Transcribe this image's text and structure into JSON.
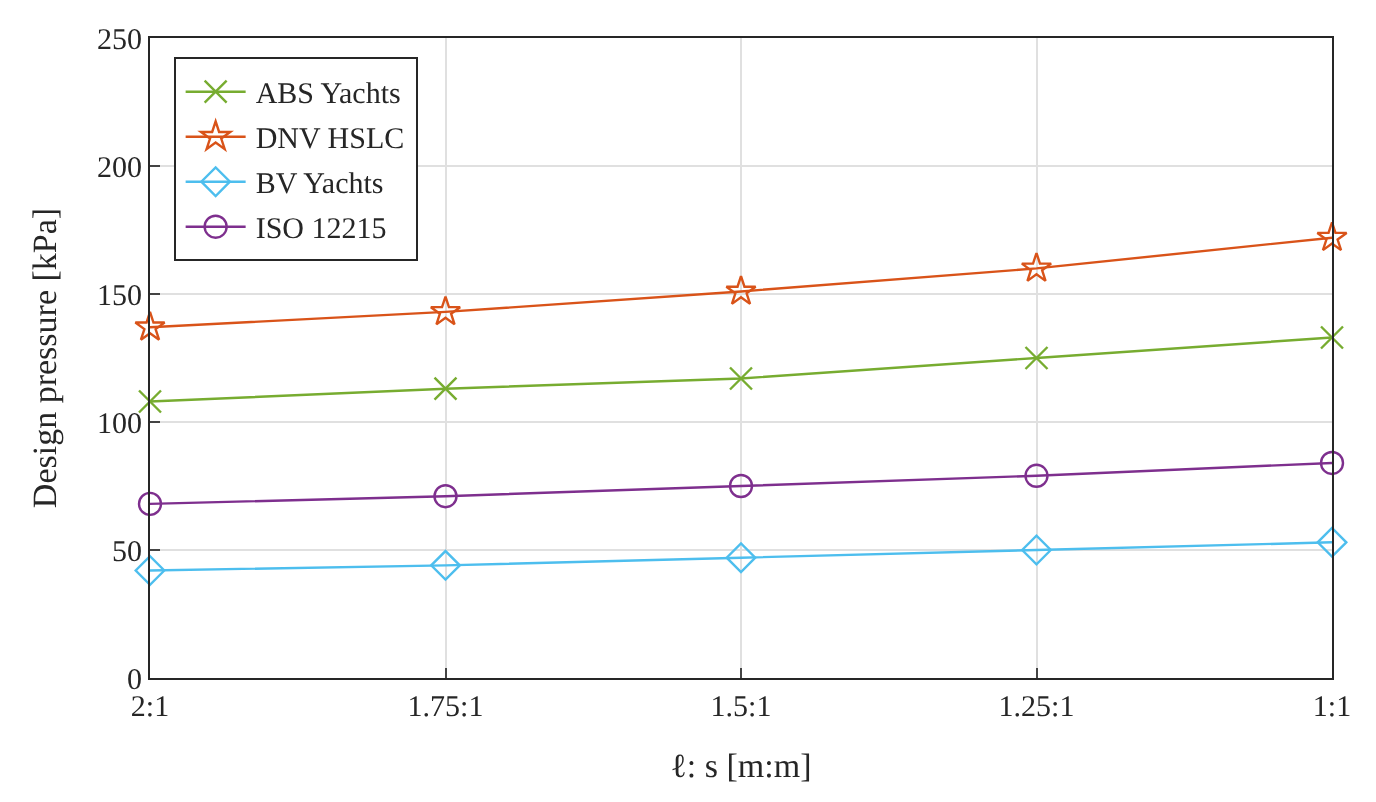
{
  "chart_data": {
    "type": "line",
    "xlabel": "ℓ: s [m:m]",
    "ylabel": "Design pressure [kPa]",
    "categories": [
      "2:1",
      "1.75:1",
      "1.5:1",
      "1.25:1",
      "1:1"
    ],
    "ylim": [
      0,
      250
    ],
    "yticks": [
      0,
      50,
      100,
      150,
      200,
      250
    ],
    "grid": true,
    "legend": "top left",
    "series": [
      {
        "name": "ABS Yachts",
        "color": "#77ac30",
        "marker": "cross",
        "values": [
          108,
          113,
          117,
          125,
          133
        ]
      },
      {
        "name": "DNV HSLC",
        "color": "#d95319",
        "marker": "star",
        "values": [
          137,
          143,
          151,
          160,
          172
        ]
      },
      {
        "name": "BV Yachts",
        "color": "#4dbeee",
        "marker": "diamond",
        "values": [
          42,
          44,
          47,
          50,
          53
        ]
      },
      {
        "name": "ISO 12215",
        "color": "#7e2f8e",
        "marker": "circle",
        "values": [
          68,
          71,
          75,
          79,
          84
        ]
      }
    ]
  }
}
